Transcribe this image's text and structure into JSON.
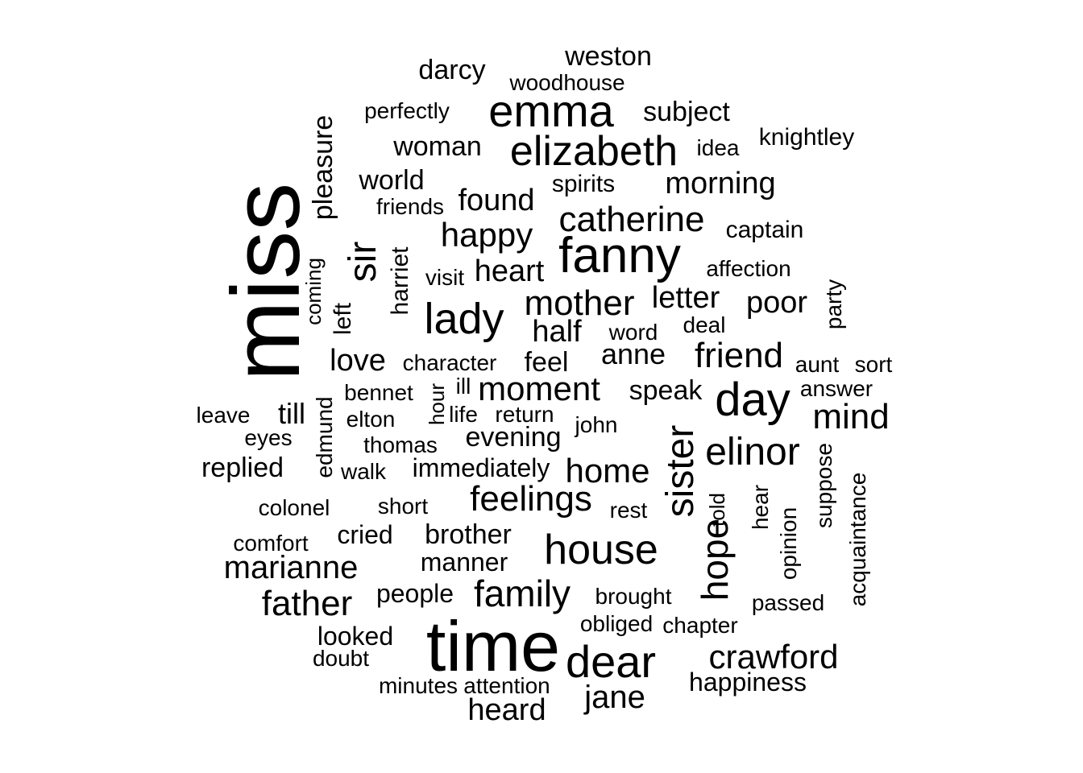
{
  "words": [
    {
      "text": "miss",
      "rotated": true
    },
    {
      "text": "time",
      "rotated": false
    },
    {
      "text": "fanny",
      "rotated": false
    },
    {
      "text": "emma",
      "rotated": false
    },
    {
      "text": "elizabeth",
      "rotated": false
    },
    {
      "text": "dear",
      "rotated": false
    },
    {
      "text": "day",
      "rotated": false
    },
    {
      "text": "house",
      "rotated": false
    },
    {
      "text": "lady",
      "rotated": false
    },
    {
      "text": "sister",
      "rotated": true
    },
    {
      "text": "elinor",
      "rotated": false
    },
    {
      "text": "catherine",
      "rotated": false
    },
    {
      "text": "friend",
      "rotated": false
    },
    {
      "text": "mother",
      "rotated": false
    },
    {
      "text": "sir",
      "rotated": true
    },
    {
      "text": "hope",
      "rotated": true
    },
    {
      "text": "family",
      "rotated": false
    },
    {
      "text": "mind",
      "rotated": false
    },
    {
      "text": "home",
      "rotated": false
    },
    {
      "text": "moment",
      "rotated": false
    },
    {
      "text": "feelings",
      "rotated": false
    },
    {
      "text": "happy",
      "rotated": false
    },
    {
      "text": "father",
      "rotated": false
    },
    {
      "text": "crawford",
      "rotated": false
    },
    {
      "text": "jane",
      "rotated": false
    },
    {
      "text": "heard",
      "rotated": false
    },
    {
      "text": "marianne",
      "rotated": false
    },
    {
      "text": "half",
      "rotated": false
    },
    {
      "text": "morning",
      "rotated": false
    },
    {
      "text": "found",
      "rotated": false
    },
    {
      "text": "heart",
      "rotated": false
    },
    {
      "text": "letter",
      "rotated": false
    },
    {
      "text": "poor",
      "rotated": false
    },
    {
      "text": "anne",
      "rotated": false
    },
    {
      "text": "love",
      "rotated": false
    },
    {
      "text": "weston",
      "rotated": false
    },
    {
      "text": "darcy",
      "rotated": false
    },
    {
      "text": "subject",
      "rotated": false
    },
    {
      "text": "woman",
      "rotated": false
    },
    {
      "text": "world",
      "rotated": false
    },
    {
      "text": "pleasure",
      "rotated": true
    },
    {
      "text": "brother",
      "rotated": false
    },
    {
      "text": "feel",
      "rotated": false
    },
    {
      "text": "speak",
      "rotated": false
    },
    {
      "text": "till",
      "rotated": false
    },
    {
      "text": "replied",
      "rotated": false
    },
    {
      "text": "evening",
      "rotated": false
    },
    {
      "text": "immediately",
      "rotated": false
    },
    {
      "text": "manner",
      "rotated": false
    },
    {
      "text": "cried",
      "rotated": false
    },
    {
      "text": "people",
      "rotated": false
    },
    {
      "text": "happiness",
      "rotated": false
    },
    {
      "text": "looked",
      "rotated": false
    },
    {
      "text": "knightley",
      "rotated": false
    },
    {
      "text": "captain",
      "rotated": false
    },
    {
      "text": "harriet",
      "rotated": true
    },
    {
      "text": "left",
      "rotated": true
    },
    {
      "text": "edmund",
      "rotated": true
    },
    {
      "text": "hear",
      "rotated": true
    },
    {
      "text": "acquaintance",
      "rotated": true
    },
    {
      "text": "suppose",
      "rotated": true
    },
    {
      "text": "opinion",
      "rotated": true
    },
    {
      "text": "party",
      "rotated": true
    },
    {
      "text": "told",
      "rotated": true
    },
    {
      "text": "coming",
      "rotated": true
    },
    {
      "text": "hour",
      "rotated": true
    },
    {
      "text": "spirits",
      "rotated": false
    },
    {
      "text": "affection",
      "rotated": false
    },
    {
      "text": "character",
      "rotated": false
    },
    {
      "text": "brought",
      "rotated": false
    },
    {
      "text": "passed",
      "rotated": false
    },
    {
      "text": "perfectly",
      "rotated": false
    },
    {
      "text": "woodhouse",
      "rotated": false
    },
    {
      "text": "idea",
      "rotated": false
    },
    {
      "text": "friends",
      "rotated": false
    },
    {
      "text": "visit",
      "rotated": false
    },
    {
      "text": "word",
      "rotated": false
    },
    {
      "text": "deal",
      "rotated": false
    },
    {
      "text": "aunt",
      "rotated": false
    },
    {
      "text": "sort",
      "rotated": false
    },
    {
      "text": "answer",
      "rotated": false
    },
    {
      "text": "bennet",
      "rotated": false
    },
    {
      "text": "ill",
      "rotated": false
    },
    {
      "text": "leave",
      "rotated": false
    },
    {
      "text": "life",
      "rotated": false
    },
    {
      "text": "return",
      "rotated": false
    },
    {
      "text": "elton",
      "rotated": false
    },
    {
      "text": "john",
      "rotated": false
    },
    {
      "text": "eyes",
      "rotated": false
    },
    {
      "text": "thomas",
      "rotated": false
    },
    {
      "text": "walk",
      "rotated": false
    },
    {
      "text": "colonel",
      "rotated": false
    },
    {
      "text": "short",
      "rotated": false
    },
    {
      "text": "rest",
      "rotated": false
    },
    {
      "text": "comfort",
      "rotated": false
    },
    {
      "text": "obliged",
      "rotated": false
    },
    {
      "text": "chapter",
      "rotated": false
    },
    {
      "text": "doubt",
      "rotated": false
    },
    {
      "text": "minutes",
      "rotated": false
    },
    {
      "text": "attention",
      "rotated": false
    }
  ]
}
